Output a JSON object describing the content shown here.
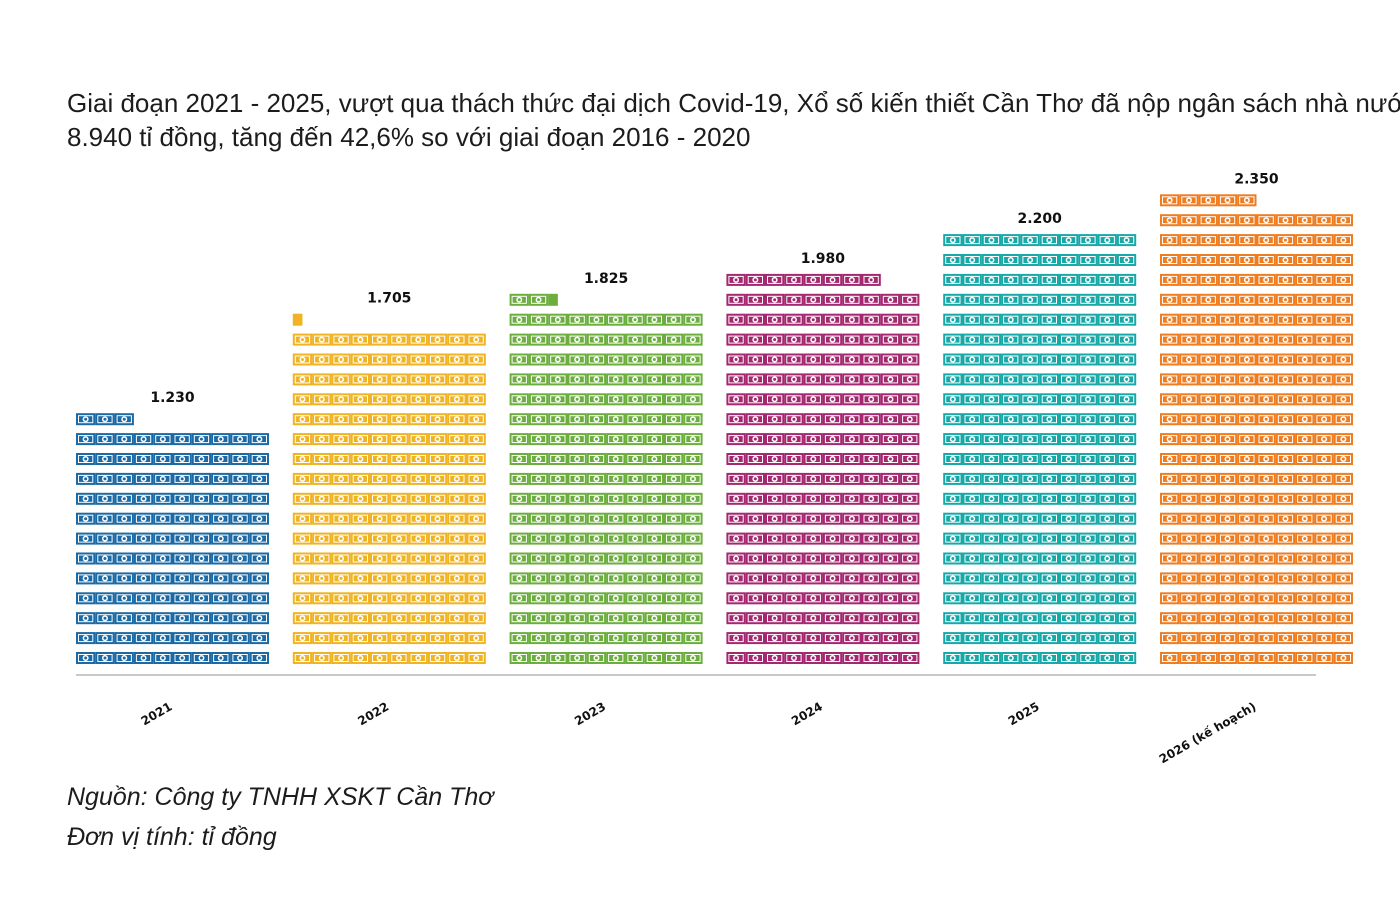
{
  "title": {
    "line1": "Giai đoạn 2021 - 2025, vượt qua thách thức đại dịch Covid-19, Xổ số kiến thiết Cần Thơ đã nộp ngân sách nhà nước",
    "line2": "8.940 tỉ đồng, tăng đến 42,6% so với giai đoạn 2016 - 2020"
  },
  "footer": {
    "source": "Nguồn: Công ty TNHH XSKT Cần Thơ",
    "unit": "Đơn vị tính: tỉ đồng"
  },
  "chart_data": {
    "type": "bar",
    "style": "pictograph (stacked banknote icons)",
    "categories": [
      "2021",
      "2022",
      "2023",
      "2024",
      "2025",
      "2026 (kế hoạch)"
    ],
    "values": [
      1230,
      1705,
      1825,
      1980,
      2200,
      2350
    ],
    "value_labels": [
      "1.230",
      "1.705",
      "1.825",
      "1.980",
      "2.200",
      "2.350"
    ],
    "colors": [
      "#1b6aa5",
      "#f0b323",
      "#6cae3e",
      "#a3286f",
      "#18a8a8",
      "#ee7d22"
    ],
    "unit": "tỉ đồng",
    "ylim": [
      0,
      2350
    ],
    "grid": false,
    "legend": "none"
  }
}
